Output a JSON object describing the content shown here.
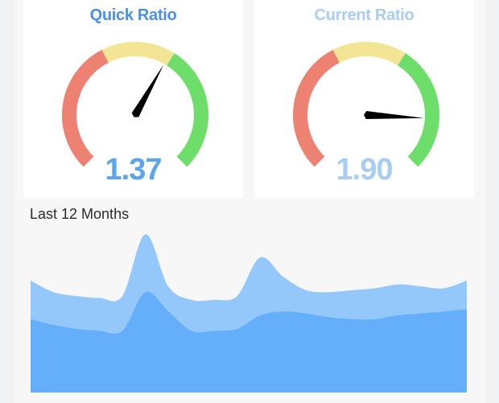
{
  "gauges": [
    {
      "title": "Quick Ratio",
      "value_label": "1.37",
      "value": 1.37,
      "title_color": "#4a90e2",
      "value_color": "#5aa5f0"
    },
    {
      "title": "Current Ratio",
      "value_label": "1.90",
      "value": 1.9,
      "title_color": "#a8cdf5",
      "value_color": "#a8cdf5"
    }
  ],
  "gauge_bands": [
    {
      "name": "red",
      "color": "#ee8272"
    },
    {
      "name": "yellow",
      "color": "#f4e594"
    },
    {
      "name": "green",
      "color": "#6ede6a"
    }
  ],
  "chart_data": {
    "type": "area",
    "title": "Last 12 Months",
    "x": [
      1,
      2,
      3,
      4,
      5,
      6,
      7,
      8,
      9,
      10,
      11,
      12,
      13,
      14,
      15,
      16,
      17,
      18,
      19,
      20
    ],
    "series": [
      {
        "color": "#65aefa",
        "values": [
          38,
          35,
          33,
          32,
          32,
          52,
          42,
          32,
          32,
          33,
          40,
          42,
          41,
          39,
          38,
          38,
          40,
          41,
          42,
          43
        ]
      },
      {
        "color": "#95c8fa",
        "values": [
          58,
          52,
          50,
          49,
          50,
          82,
          55,
          48,
          48,
          50,
          70,
          60,
          53,
          52,
          53,
          54,
          56,
          55,
          54,
          58
        ]
      }
    ],
    "ylim": [
      0,
      90
    ]
  }
}
